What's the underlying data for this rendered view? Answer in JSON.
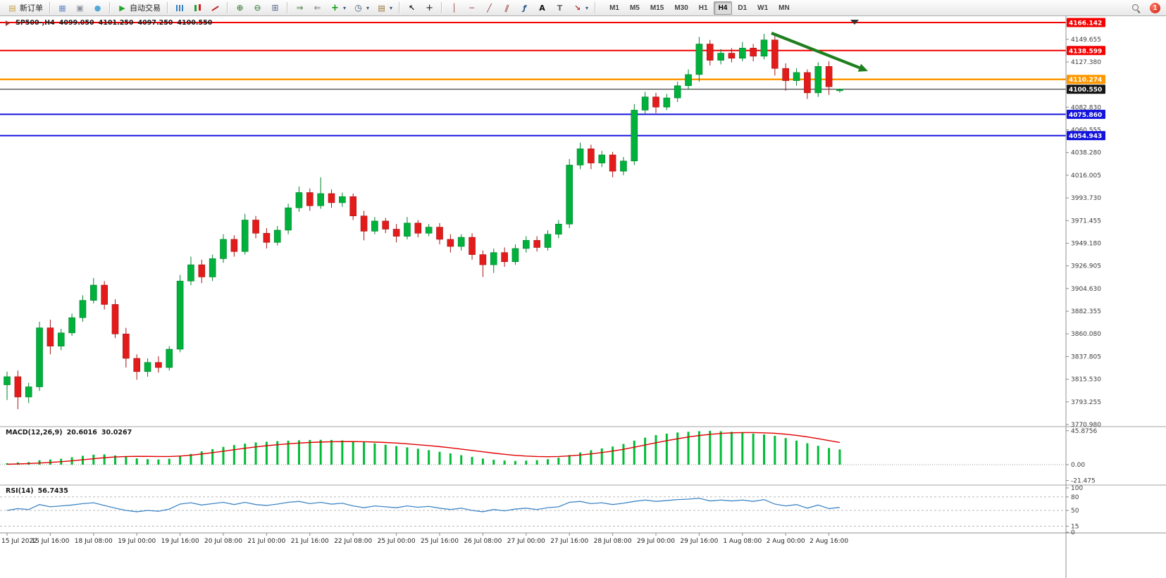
{
  "toolbar": {
    "buttons": [
      {
        "name": "new-order-button",
        "icon": "doc-icon",
        "label": "新订单"
      },
      {
        "name": "sep"
      },
      {
        "name": "charts-window-button",
        "icon": "window-icon"
      },
      {
        "name": "profiles-button",
        "icon": "layers-icon"
      },
      {
        "name": "alerts-button",
        "icon": "globe-icon"
      },
      {
        "name": "sep"
      },
      {
        "name": "autotrade-button",
        "icon": "play-icon",
        "label": "自动交易"
      },
      {
        "name": "sep"
      },
      {
        "name": "bar-chart-button",
        "icon": "bars-icon"
      },
      {
        "name": "candle-chart-button",
        "icon": "candles-icon"
      },
      {
        "name": "line-chart-button",
        "icon": "line-icon"
      },
      {
        "name": "sep"
      },
      {
        "name": "zoom-in-button",
        "icon": "zoom-in-icon"
      },
      {
        "name": "zoom-out-button",
        "icon": "zoom-out-icon"
      },
      {
        "name": "tile-windows-button",
        "icon": "grid-icon"
      },
      {
        "name": "sep"
      },
      {
        "name": "autoscroll-button",
        "icon": "autoscroll-icon"
      },
      {
        "name": "chart-shift-button",
        "icon": "chartshift-icon"
      },
      {
        "name": "indicators-button",
        "icon": "plus-chart-icon",
        "dropdown": true
      },
      {
        "name": "periods-button",
        "icon": "clock-icon",
        "dropdown": true
      },
      {
        "name": "templates-button",
        "icon": "template-icon",
        "dropdown": true
      },
      {
        "name": "sep"
      },
      {
        "name": "cursor-button",
        "icon": "cursor-icon"
      },
      {
        "name": "crosshair-button",
        "icon": "crosshair-icon"
      },
      {
        "name": "sep"
      },
      {
        "name": "vline-button",
        "icon": "vline-icon"
      },
      {
        "name": "hline-button",
        "icon": "hline-icon"
      },
      {
        "name": "trendline-button",
        "icon": "trendline-icon"
      },
      {
        "name": "channel-button",
        "icon": "channel-icon"
      },
      {
        "name": "fibo-button",
        "icon": "fibo-icon"
      },
      {
        "name": "text-button",
        "icon": "text-icon"
      },
      {
        "name": "label-button",
        "icon": "label-icon"
      },
      {
        "name": "shapes-button",
        "icon": "shapes-icon",
        "dropdown": true
      },
      {
        "name": "sep"
      }
    ],
    "timeframes": [
      "M1",
      "M5",
      "M15",
      "M30",
      "H1",
      "H4",
      "D1",
      "W1",
      "MN"
    ],
    "active_timeframe": "H4",
    "notification_count": "1"
  },
  "chart": {
    "symbol_period": "SP500-,H4",
    "open": "4099.050",
    "high": "4101.250",
    "low": "4097.250",
    "close": "4100.550"
  },
  "panes": {
    "macd_title": "MACD(12,26,9)",
    "macd_main": "20.6016",
    "macd_signal": "30.0267",
    "rsi_title": "RSI(14)",
    "rsi_value": "56.7435"
  },
  "price_axis": {
    "ticks": [
      "4149.655",
      "4127.380",
      "4082.830",
      "4060.555",
      "4038.280",
      "4016.005",
      "3993.730",
      "3971.455",
      "3949.180",
      "3926.905",
      "3904.630",
      "3882.355",
      "3860.080",
      "3837.805",
      "3815.530",
      "3793.255",
      "3770.980"
    ]
  },
  "annotations": {
    "trend_arrow": {
      "color": "#1E7F1E",
      "direction": "down-right"
    }
  },
  "chart_data": {
    "type": "candlestick",
    "symbol": "SP500-",
    "timeframe": "H4",
    "current_ohlc": {
      "open": 4099.05,
      "high": 4101.25,
      "low": 4097.25,
      "close": 4100.55
    },
    "x_labels": [
      "15 Jul 2022",
      "15 Jul 16:00",
      "18 Jul 08:00",
      "19 Jul 00:00",
      "19 Jul 16:00",
      "20 Jul 08:00",
      "21 Jul 00:00",
      "21 Jul 16:00",
      "22 Jul 08:00",
      "25 Jul 00:00",
      "25 Jul 16:00",
      "26 Jul 08:00",
      "27 Jul 00:00",
      "27 Jul 16:00",
      "28 Jul 08:00",
      "29 Jul 00:00",
      "29 Jul 16:00",
      "1 Aug 08:00",
      "2 Aug 00:00",
      "2 Aug 16:00"
    ],
    "levels": [
      {
        "name": "resistance-1",
        "label": "4166.142",
        "price": 4166.142,
        "color": "#F40000",
        "width": 2
      },
      {
        "name": "resistance-2",
        "label": "4138.599",
        "price": 4138.599,
        "color": "#F40000",
        "width": 2
      },
      {
        "name": "pivot",
        "label": "4110.274",
        "price": 4110.274,
        "color": "#FF9800",
        "width": 2.5
      },
      {
        "name": "bid-price",
        "label": "4100.550",
        "price": 4100.55,
        "color": "#151515",
        "width": 1
      },
      {
        "name": "support-1",
        "label": "4075.860",
        "price": 4075.86,
        "color": "#1414DE",
        "width": 2
      },
      {
        "name": "support-2",
        "label": "4054.943",
        "price": 4054.943,
        "color": "#1414DE",
        "width": 2
      }
    ],
    "candles": [
      [
        3810,
        3823,
        3795,
        3818
      ],
      [
        3818,
        3824,
        3786,
        3798
      ],
      [
        3798,
        3812,
        3792,
        3808
      ],
      [
        3808,
        3872,
        3804,
        3866
      ],
      [
        3866,
        3874,
        3840,
        3848
      ],
      [
        3848,
        3865,
        3844,
        3861
      ],
      [
        3861,
        3880,
        3858,
        3876
      ],
      [
        3876,
        3898,
        3872,
        3893
      ],
      [
        3893,
        3915,
        3890,
        3908
      ],
      [
        3908,
        3912,
        3884,
        3889
      ],
      [
        3889,
        3894,
        3856,
        3860
      ],
      [
        3860,
        3866,
        3827,
        3836
      ],
      [
        3836,
        3840,
        3815,
        3823
      ],
      [
        3823,
        3836,
        3818,
        3832
      ],
      [
        3832,
        3838,
        3822,
        3827
      ],
      [
        3827,
        3848,
        3824,
        3845
      ],
      [
        3845,
        3918,
        3842,
        3912
      ],
      [
        3912,
        3936,
        3908,
        3928
      ],
      [
        3928,
        3933,
        3910,
        3916
      ],
      [
        3916,
        3938,
        3912,
        3934
      ],
      [
        3934,
        3958,
        3930,
        3953
      ],
      [
        3953,
        3957,
        3936,
        3941
      ],
      [
        3941,
        3978,
        3938,
        3972
      ],
      [
        3972,
        3976,
        3954,
        3959
      ],
      [
        3959,
        3964,
        3944,
        3950
      ],
      [
        3950,
        3966,
        3947,
        3962
      ],
      [
        3962,
        3988,
        3958,
        3984
      ],
      [
        3984,
        4005,
        3980,
        3999
      ],
      [
        3999,
        4003,
        3981,
        3986
      ],
      [
        3986,
        4014,
        3983,
        3998
      ],
      [
        3998,
        4002,
        3984,
        3989
      ],
      [
        3989,
        3999,
        3985,
        3995
      ],
      [
        3995,
        3998,
        3972,
        3976
      ],
      [
        3976,
        3981,
        3952,
        3961
      ],
      [
        3961,
        3975,
        3958,
        3971
      ],
      [
        3971,
        3974,
        3959,
        3963
      ],
      [
        3963,
        3968,
        3950,
        3956
      ],
      [
        3956,
        3975,
        3953,
        3969
      ],
      [
        3969,
        3972,
        3955,
        3959
      ],
      [
        3959,
        3968,
        3956,
        3965
      ],
      [
        3965,
        3969,
        3948,
        3953
      ],
      [
        3953,
        3958,
        3940,
        3946
      ],
      [
        3946,
        3958,
        3942,
        3955
      ],
      [
        3955,
        3959,
        3933,
        3938
      ],
      [
        3938,
        3942,
        3916,
        3928
      ],
      [
        3928,
        3944,
        3920,
        3940
      ],
      [
        3940,
        3945,
        3926,
        3931
      ],
      [
        3931,
        3948,
        3928,
        3944
      ],
      [
        3944,
        3956,
        3940,
        3952
      ],
      [
        3952,
        3956,
        3941,
        3945
      ],
      [
        3945,
        3962,
        3942,
        3958
      ],
      [
        3958,
        3972,
        3954,
        3968
      ],
      [
        3968,
        4032,
        3964,
        4026
      ],
      [
        4026,
        4048,
        4022,
        4042
      ],
      [
        4042,
        4046,
        4022,
        4028
      ],
      [
        4028,
        4040,
        4024,
        4036
      ],
      [
        4036,
        4039,
        4014,
        4020
      ],
      [
        4020,
        4034,
        4016,
        4030
      ],
      [
        4030,
        4086,
        4026,
        4080
      ],
      [
        4080,
        4098,
        4076,
        4093
      ],
      [
        4093,
        4097,
        4077,
        4083
      ],
      [
        4083,
        4096,
        4080,
        4092
      ],
      [
        4092,
        4108,
        4088,
        4104
      ],
      [
        4104,
        4120,
        4100,
        4115
      ],
      [
        4115,
        4152,
        4108,
        4145
      ],
      [
        4145,
        4149,
        4124,
        4129
      ],
      [
        4129,
        4140,
        4125,
        4136
      ],
      [
        4136,
        4141,
        4127,
        4131
      ],
      [
        4131,
        4147,
        4128,
        4141
      ],
      [
        4141,
        4145,
        4128,
        4133
      ],
      [
        4133,
        4155,
        4130,
        4149
      ],
      [
        4149,
        4153,
        4114,
        4121
      ],
      [
        4121,
        4126,
        4099,
        4109
      ],
      [
        4109,
        4121,
        4104,
        4117
      ],
      [
        4117,
        4120,
        4091,
        4097
      ],
      [
        4097,
        4127,
        4093,
        4123
      ],
      [
        4123,
        4128,
        4095,
        4103
      ],
      [
        4099.05,
        4101.25,
        4097.25,
        4100.55
      ]
    ],
    "indicators": [
      {
        "type": "MACD",
        "params": "12,26,9",
        "main": 20.6016,
        "signal": 30.0267,
        "axis_labels": [
          "45.8756",
          "0.00",
          "-21.475"
        ],
        "histogram": [
          2,
          3,
          3.5,
          6,
          7,
          8,
          10,
          12,
          13.5,
          14,
          12.5,
          10.5,
          8.5,
          7.5,
          7,
          8,
          11,
          14.5,
          18,
          21,
          24,
          26.5,
          28.5,
          30,
          31,
          31.8,
          32.4,
          33,
          33.4,
          33.6,
          33.4,
          32.8,
          31.8,
          30.4,
          28.8,
          27,
          25.2,
          23.4,
          21.6,
          19.6,
          17.4,
          15.2,
          12.8,
          10.4,
          8.2,
          6.6,
          5.6,
          5,
          5.4,
          6,
          7.4,
          9.4,
          13,
          16.5,
          19.5,
          22,
          24.5,
          28,
          32.5,
          36.5,
          40,
          42,
          43.5,
          44.5,
          45.3,
          45.8,
          45.2,
          44.4,
          43.2,
          42,
          40.8,
          39,
          36,
          32.5,
          29,
          25.5,
          22.5,
          20.6
        ],
        "signal_line": [
          0.5,
          1,
          1.5,
          2.2,
          3,
          4,
          5.2,
          6.6,
          8,
          9.4,
          10.4,
          11,
          11.2,
          11.2,
          11,
          11,
          11.6,
          12.8,
          14.4,
          16.2,
          18.2,
          20.2,
          22.2,
          24,
          25.6,
          27,
          28.2,
          29.2,
          30,
          30.6,
          31,
          31.2,
          31.2,
          31,
          30.6,
          30,
          29.2,
          28.2,
          27,
          25.8,
          24.4,
          22.8,
          21,
          19.2,
          17.4,
          15.6,
          14,
          12.6,
          11.6,
          11,
          10.8,
          11,
          11.8,
          13,
          14.6,
          16.4,
          18.4,
          20.8,
          23.6,
          26.6,
          29.6,
          32.4,
          35,
          37.4,
          39.4,
          41,
          42.2,
          43,
          43.4,
          43.4,
          43,
          42.4,
          41.2,
          39.6,
          37.6,
          35.2,
          32.6,
          30.03
        ]
      },
      {
        "type": "RSI",
        "params": "14",
        "value": 56.7435,
        "axis_labels": [
          "100",
          "80",
          "50",
          "15",
          "0"
        ],
        "levels": [
          80,
          50,
          15
        ],
        "series": [
          50,
          54,
          52,
          63,
          58,
          60,
          62,
          65,
          67,
          61,
          55,
          50,
          47,
          50,
          48,
          53,
          64,
          67,
          62,
          65,
          68,
          63,
          68,
          63,
          61,
          64,
          68,
          70,
          65,
          68,
          64,
          66,
          60,
          56,
          60,
          58,
          56,
          60,
          57,
          59,
          55,
          52,
          55,
          50,
          47,
          52,
          49,
          53,
          55,
          52,
          56,
          58,
          68,
          70,
          65,
          67,
          63,
          66,
          70,
          73,
          70,
          72,
          74,
          75,
          77,
          71,
          73,
          71,
          73,
          70,
          74,
          64,
          60,
          63,
          55,
          62,
          54,
          56.74
        ]
      }
    ],
    "colors": {
      "up": "#00B13C",
      "down": "#E31B1B",
      "macd_hist": "#00BD35",
      "macd_signal": "#E00000",
      "rsi": "#3E86C6"
    }
  }
}
